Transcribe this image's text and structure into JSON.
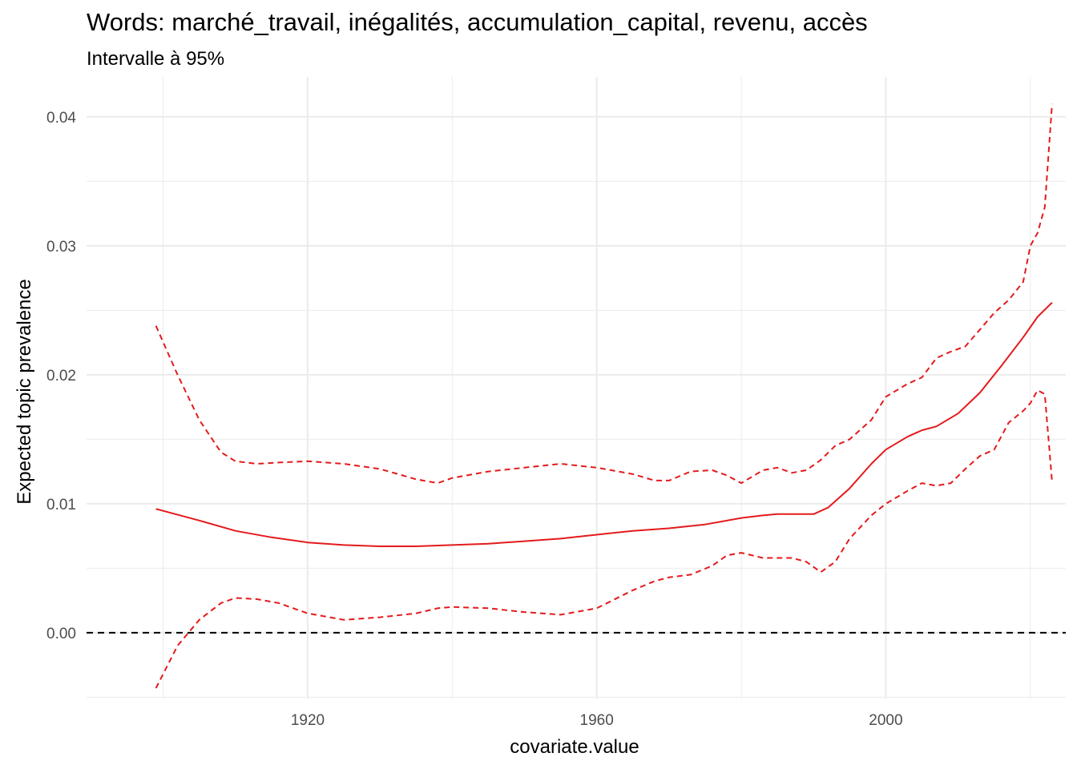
{
  "chart_data": {
    "type": "line",
    "title": "Words: marché_travail, inégalités, accumulation_capital, revenu, accès",
    "subtitle": "Intervalle à 95%",
    "xlabel": "covariate.value",
    "ylabel": "Expected topic prevalence",
    "xlim": [
      1889.4,
      2024.9
    ],
    "ylim": [
      -0.0051,
      0.0431
    ],
    "x_ticks": [
      1920,
      1960,
      2000
    ],
    "x_tick_labels": [
      "1920",
      "1960",
      "2000"
    ],
    "x_minor_ticks": [
      1900,
      1940,
      1980,
      2020
    ],
    "y_ticks": [
      0.0,
      0.01,
      0.02,
      0.03,
      0.04
    ],
    "y_tick_labels": [
      "0.00",
      "0.01",
      "0.02",
      "0.03",
      "0.04"
    ],
    "y_minor_ticks": [
      -0.005,
      0.005,
      0.015,
      0.025,
      0.035
    ],
    "grid": true,
    "legend": "none",
    "colors": {
      "estimate": "#e41a1c",
      "interval": "#e41a1c",
      "reference": "#000000",
      "grid": "#ebebeb",
      "tick_text": "#4d4d4d"
    },
    "reference_line": {
      "y": 0.0,
      "style": "dashed"
    },
    "series": [
      {
        "role": "estimate",
        "style": "solid",
        "x": [
          1899,
          1905,
          1910,
          1915,
          1920,
          1925,
          1930,
          1935,
          1940,
          1945,
          1950,
          1955,
          1960,
          1965,
          1970,
          1975,
          1980,
          1983,
          1985,
          1988,
          1990,
          1992,
          1995,
          1998,
          2000,
          2003,
          2005,
          2007,
          2010,
          2013,
          2016,
          2019,
          2021,
          2023
        ],
        "y": [
          0.0096,
          0.0087,
          0.0079,
          0.0074,
          0.007,
          0.0068,
          0.0067,
          0.0067,
          0.0068,
          0.0069,
          0.0071,
          0.0073,
          0.0076,
          0.0079,
          0.0081,
          0.0084,
          0.0089,
          0.0091,
          0.0092,
          0.0092,
          0.0092,
          0.0097,
          0.0112,
          0.0131,
          0.0142,
          0.0152,
          0.0157,
          0.016,
          0.017,
          0.0186,
          0.0207,
          0.0229,
          0.0245,
          0.0256
        ]
      },
      {
        "role": "upper",
        "style": "dashed",
        "x": [
          1899,
          1902,
          1905,
          1908,
          1910,
          1913,
          1916,
          1920,
          1925,
          1930,
          1935,
          1938,
          1940,
          1945,
          1950,
          1955,
          1960,
          1965,
          1968,
          1970,
          1973,
          1976,
          1978,
          1980,
          1983,
          1985,
          1987,
          1989,
          1991,
          1993,
          1995,
          1998,
          2000,
          2003,
          2005,
          2007,
          2009,
          2011,
          2013,
          2015,
          2017,
          2019,
          2020,
          2021,
          2022,
          2023
        ],
        "y": [
          0.0238,
          0.02,
          0.0165,
          0.014,
          0.0133,
          0.0131,
          0.0132,
          0.0133,
          0.0131,
          0.0127,
          0.0119,
          0.0116,
          0.012,
          0.0125,
          0.0128,
          0.0131,
          0.0128,
          0.0123,
          0.0118,
          0.0118,
          0.0125,
          0.0126,
          0.0122,
          0.0116,
          0.0126,
          0.0128,
          0.0124,
          0.0126,
          0.0134,
          0.0145,
          0.015,
          0.0165,
          0.0183,
          0.0193,
          0.0198,
          0.0213,
          0.0218,
          0.0222,
          0.0235,
          0.0248,
          0.0258,
          0.0272,
          0.03,
          0.031,
          0.033,
          0.041
        ]
      },
      {
        "role": "lower",
        "style": "dashed",
        "x": [
          1899,
          1902,
          1905,
          1908,
          1910,
          1913,
          1916,
          1920,
          1925,
          1930,
          1935,
          1938,
          1940,
          1945,
          1950,
          1955,
          1960,
          1965,
          1968,
          1970,
          1973,
          1976,
          1978,
          1980,
          1983,
          1985,
          1987,
          1989,
          1991,
          1993,
          1995,
          1998,
          2000,
          2003,
          2005,
          2007,
          2009,
          2011,
          2013,
          2015,
          2017,
          2019,
          2020,
          2021,
          2022,
          2023
        ],
        "y": [
          -0.0043,
          -0.001,
          0.001,
          0.0023,
          0.0027,
          0.0026,
          0.0023,
          0.0015,
          0.001,
          0.0012,
          0.0015,
          0.0019,
          0.002,
          0.0019,
          0.0016,
          0.0014,
          0.0019,
          0.0033,
          0.004,
          0.0043,
          0.0045,
          0.0052,
          0.006,
          0.0062,
          0.0058,
          0.0058,
          0.0058,
          0.0055,
          0.0047,
          0.0055,
          0.0073,
          0.0091,
          0.01,
          0.011,
          0.0116,
          0.0114,
          0.0116,
          0.0127,
          0.0137,
          0.0142,
          0.0163,
          0.0172,
          0.0178,
          0.0188,
          0.0185,
          0.0117
        ]
      }
    ]
  }
}
